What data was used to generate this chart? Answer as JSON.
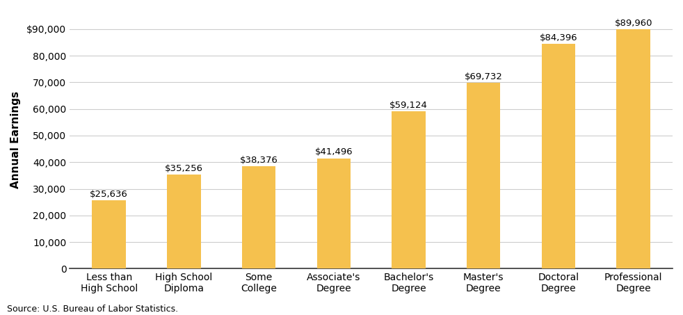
{
  "categories": [
    "Less than\nHigh School",
    "High School\nDiploma",
    "Some\nCollege",
    "Associate's\nDegree",
    "Bachelor's\nDegree",
    "Master's\nDegree",
    "Doctoral\nDegree",
    "Professional\nDegree"
  ],
  "values": [
    25636,
    35256,
    38376,
    41496,
    59124,
    69732,
    84396,
    89960
  ],
  "labels": [
    "$25,636",
    "$35,256",
    "$38,376",
    "$41,496",
    "$59,124",
    "$69,732",
    "$84,396",
    "$89,960"
  ],
  "bar_color": "#F5C14E",
  "ylabel": "Annual Earnings",
  "ylim": [
    0,
    97000
  ],
  "yticks": [
    0,
    10000,
    20000,
    30000,
    40000,
    50000,
    60000,
    70000,
    80000,
    90000
  ],
  "ytick_labels": [
    "0",
    "10,000",
    "20,000",
    "30,000",
    "40,000",
    "50,000",
    "60,000",
    "70,000",
    "80,000",
    "$90,000"
  ],
  "source_text": "Source: U.S. Bureau of Labor Statistics.",
  "background_color": "#ffffff",
  "grid_color": "#cccccc",
  "bar_edge_color": "none",
  "bar_width": 0.45,
  "label_fontsize": 9.5,
  "tick_fontsize": 10,
  "ylabel_fontsize": 11,
  "source_fontsize": 9
}
